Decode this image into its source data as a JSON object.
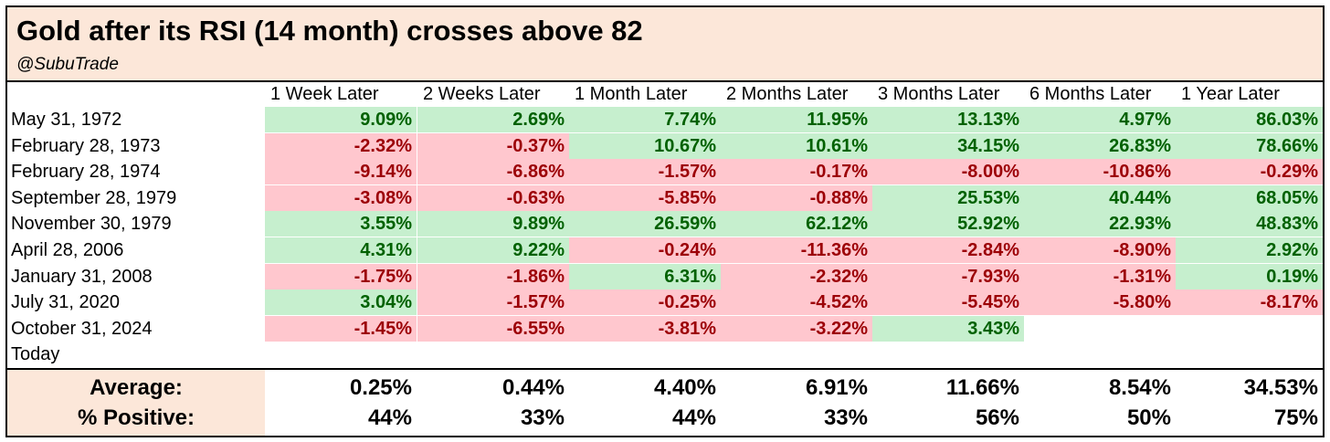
{
  "title": "Gold after its RSI (14 month) crosses above 82",
  "handle": "@SubuTrade",
  "colors": {
    "header_bg": "#fce7d9",
    "positive_bg": "#c6efce",
    "positive_text": "#006100",
    "negative_bg": "#ffc7ce",
    "negative_text": "#9c0006"
  },
  "chart_data": {
    "type": "table",
    "columns": [
      "1 Week Later",
      "2 Weeks Later",
      "1 Month Later",
      "2 Months Later",
      "3 Months Later",
      "6 Months Later",
      "1 Year Later"
    ],
    "rows": [
      {
        "date": "May 31, 1972",
        "values": [
          "9.09%",
          "2.69%",
          "7.74%",
          "11.95%",
          "13.13%",
          "4.97%",
          "86.03%"
        ]
      },
      {
        "date": "February 28, 1973",
        "values": [
          "-2.32%",
          "-0.37%",
          "10.67%",
          "10.61%",
          "34.15%",
          "26.83%",
          "78.66%"
        ]
      },
      {
        "date": "February 28, 1974",
        "values": [
          "-9.14%",
          "-6.86%",
          "-1.57%",
          "-0.17%",
          "-8.00%",
          "-10.86%",
          "-0.29%"
        ]
      },
      {
        "date": "September 28, 1979",
        "values": [
          "-3.08%",
          "-0.63%",
          "-5.85%",
          "-0.88%",
          "25.53%",
          "40.44%",
          "68.05%"
        ]
      },
      {
        "date": "November 30, 1979",
        "values": [
          "3.55%",
          "9.89%",
          "26.59%",
          "62.12%",
          "52.92%",
          "22.93%",
          "48.83%"
        ]
      },
      {
        "date": "April 28, 2006",
        "values": [
          "4.31%",
          "9.22%",
          "-0.24%",
          "-11.36%",
          "-2.84%",
          "-8.90%",
          "2.92%"
        ]
      },
      {
        "date": "January 31, 2008",
        "values": [
          "-1.75%",
          "-1.86%",
          "6.31%",
          "-2.32%",
          "-7.93%",
          "-1.31%",
          "0.19%"
        ]
      },
      {
        "date": "July 31, 2020",
        "values": [
          "3.04%",
          "-1.57%",
          "-0.25%",
          "-4.52%",
          "-5.45%",
          "-5.80%",
          "-8.17%"
        ]
      },
      {
        "date": "October 31, 2024",
        "values": [
          "-1.45%",
          "-6.55%",
          "-3.81%",
          "-3.22%",
          "3.43%",
          "",
          ""
        ]
      },
      {
        "date": "Today",
        "values": [
          "",
          "",
          "",
          "",
          "",
          "",
          ""
        ]
      }
    ],
    "summary": [
      {
        "label": "Average:",
        "values": [
          "0.25%",
          "0.44%",
          "4.40%",
          "6.91%",
          "11.66%",
          "8.54%",
          "34.53%"
        ]
      },
      {
        "label": "% Positive:",
        "values": [
          "44%",
          "33%",
          "44%",
          "33%",
          "56%",
          "50%",
          "75%"
        ]
      }
    ]
  }
}
